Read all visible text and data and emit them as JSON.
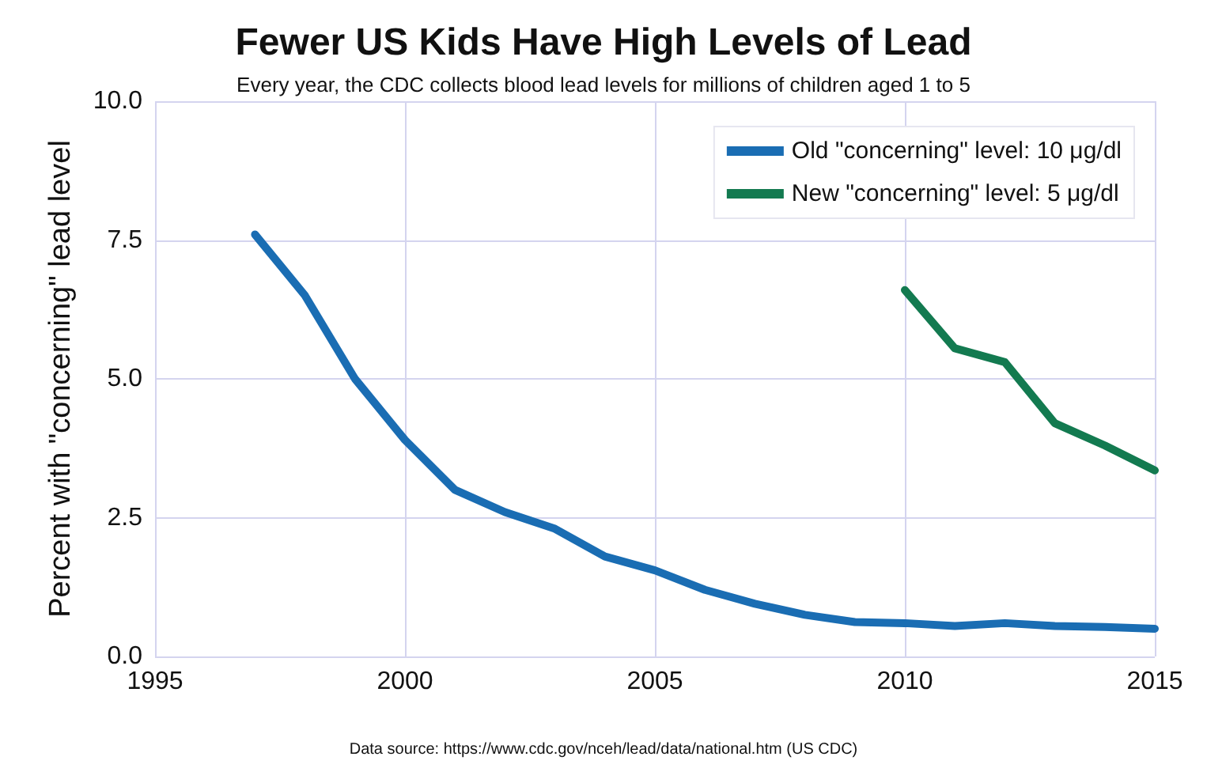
{
  "chart_data": {
    "type": "line",
    "title": "Fewer US Kids Have High Levels of Lead",
    "subtitle": "Every year, the CDC collects blood lead levels for millions of children aged 1 to 5",
    "ylabel": "Percent with \"concerning\" lead level",
    "annotations": [
      "Data source: https://www.cdc.gov/nceh/lead/data/national.htm (US CDC)"
    ],
    "series": [
      {
        "name": "Old \"concerning\" level: 10 μg/dl",
        "color": "#1a6db3",
        "x": [
          1997,
          1998,
          1999,
          2000,
          2001,
          2002,
          2003,
          2004,
          2005,
          2006,
          2007,
          2008,
          2009,
          2010,
          2011,
          2012,
          2013,
          2014,
          2015
        ],
        "values": [
          7.6,
          6.5,
          5.0,
          3.9,
          3.0,
          2.6,
          2.3,
          1.8,
          1.55,
          1.2,
          0.95,
          0.75,
          0.62,
          0.6,
          0.55,
          0.6,
          0.55,
          0.53,
          0.5
        ]
      },
      {
        "name": "New \"concerning\" level: 5 μg/dl",
        "color": "#137a50",
        "x": [
          2010,
          2011,
          2012,
          2013,
          2014,
          2015
        ],
        "values": [
          6.6,
          5.55,
          5.3,
          4.2,
          3.8,
          3.35
        ]
      }
    ],
    "xlim": [
      1995,
      2015
    ],
    "xticks": [
      1995,
      2000,
      2005,
      2010,
      2015
    ],
    "ylim": [
      0,
      10
    ],
    "yticks": [
      {
        "value": 0,
        "label": "0.0"
      },
      {
        "value": 2.5,
        "label": "2.5"
      },
      {
        "value": 5,
        "label": "5.0"
      },
      {
        "value": 7.5,
        "label": "7.5"
      },
      {
        "value": 10,
        "label": "10.0"
      }
    ],
    "grid": true,
    "legend": "top right",
    "marker": "none",
    "line_style": "solid"
  }
}
